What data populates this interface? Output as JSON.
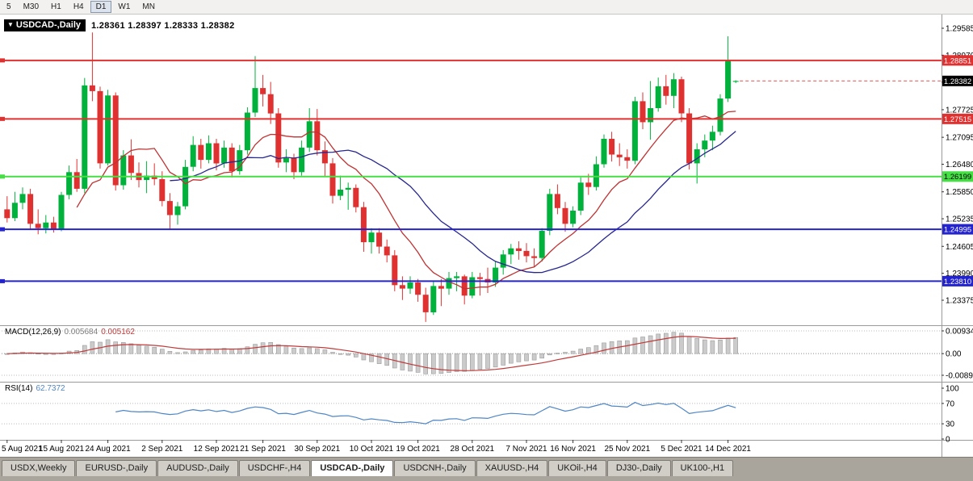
{
  "toolbar": {
    "timeframes": [
      {
        "label": "5",
        "active": false
      },
      {
        "label": "M30",
        "active": false
      },
      {
        "label": "H1",
        "active": false
      },
      {
        "label": "H4",
        "active": false
      },
      {
        "label": "D1",
        "active": true
      },
      {
        "label": "W1",
        "active": false
      },
      {
        "label": "MN",
        "active": false
      }
    ]
  },
  "chart_header": {
    "collapse_icon": "▼",
    "symbol_label": "USDCAD-,Daily",
    "ohlc": "1.28361 1.28397 1.28333 1.28382"
  },
  "indicators": {
    "macd": {
      "label": "MACD(12,26,9)",
      "value_main": "0.005684",
      "value_signal": "0.005162"
    },
    "rsi": {
      "label": "RSI(14)",
      "value": "62.7372"
    }
  },
  "tabs": [
    {
      "label": "USDX,Weekly",
      "active": false
    },
    {
      "label": "EURUSD-,Daily",
      "active": false
    },
    {
      "label": "AUDUSD-,Daily",
      "active": false
    },
    {
      "label": "USDCHF-,H4",
      "active": false
    },
    {
      "label": "USDCAD-,Daily",
      "active": true
    },
    {
      "label": "USDCNH-,Daily",
      "active": false
    },
    {
      "label": "XAUUSD-,H4",
      "active": false
    },
    {
      "label": "UKOil-,H4",
      "active": false
    },
    {
      "label": "DJ30-,Daily",
      "active": false
    },
    {
      "label": "UK100-,H1",
      "active": false
    }
  ],
  "chart_data": {
    "type": "candlestick",
    "title": "USDCAD-,Daily",
    "symbol": "USDCAD",
    "timeframe": "Daily",
    "current_bar": {
      "open": 1.28361,
      "high": 1.28397,
      "low": 1.28333,
      "close": 1.28382
    },
    "colors": {
      "up": "#00B23B",
      "down": "#E03131",
      "ma_fast": "#C03232",
      "ma_slow": "#26268E",
      "macd_hist": "#CBCBCB",
      "macd_signal": "#C03A3A",
      "rsi": "#4F86C6"
    },
    "y_axis_ticks": [
      "1.29585",
      "1.28970",
      "1.28355",
      "1.27725",
      "1.27095",
      "1.26480",
      "1.25850",
      "1.25235",
      "1.24605",
      "1.23990",
      "1.23375"
    ],
    "x_axis_ticks": [
      {
        "index": 0,
        "label": "5 Aug 2021"
      },
      {
        "index": 7,
        "label": "15 Aug 2021"
      },
      {
        "index": 13,
        "label": "24 Aug 2021"
      },
      {
        "index": 20,
        "label": "2 Sep 2021"
      },
      {
        "index": 27,
        "label": "12 Sep 2021"
      },
      {
        "index": 33,
        "label": "21 Sep 2021"
      },
      {
        "index": 40,
        "label": "30 Sep 2021"
      },
      {
        "index": 47,
        "label": "10 Oct 2021"
      },
      {
        "index": 53,
        "label": "19 Oct 2021"
      },
      {
        "index": 60,
        "label": "28 Oct 2021"
      },
      {
        "index": 67,
        "label": "7 Nov 2021"
      },
      {
        "index": 73,
        "label": "16 Nov 2021"
      },
      {
        "index": 80,
        "label": "25 Nov 2021"
      },
      {
        "index": 87,
        "label": "5 Dec 2021"
      },
      {
        "index": 93,
        "label": "14 Dec 2021"
      }
    ],
    "horizontal_lines": [
      {
        "price": 1.28851,
        "label": "1.28851",
        "color": "#E03131",
        "text_color": "#FFFFFF"
      },
      {
        "price": 1.27515,
        "label": "1.27515",
        "color": "#E03131",
        "text_color": "#FFFFFF"
      },
      {
        "price": 1.26199,
        "label": "1.26199",
        "color": "#43DF43",
        "text_color": "#000000"
      },
      {
        "price": 1.24995,
        "label": "1.24995",
        "color": "#2424CE",
        "text_color": "#FFFFFF"
      },
      {
        "price": 1.2381,
        "label": "1.23810",
        "color": "#2424CE",
        "text_color": "#FFFFFF"
      }
    ],
    "current_price": {
      "price": 1.28382,
      "label": "1.28382",
      "color": "#000000",
      "text_color": "#FFFFFF"
    },
    "moving_averages": [
      {
        "period": 10,
        "color": "#C03232"
      },
      {
        "period": 22,
        "color": "#26268E"
      }
    ],
    "macd": {
      "fast": 12,
      "slow": 26,
      "signal": 9,
      "current_main": 0.005684,
      "current_signal": 0.005162,
      "axis": [
        {
          "v": 0.009345,
          "label": "0.009345"
        },
        {
          "v": 0,
          "label": "0.00"
        },
        {
          "v": -0.0089,
          "label": "-0.008900"
        }
      ]
    },
    "rsi": {
      "period": 14,
      "current": 62.7372,
      "levels": [
        70,
        30
      ],
      "axis": [
        {
          "v": 100,
          "label": "100"
        },
        {
          "v": 70,
          "label": "70"
        },
        {
          "v": 30,
          "label": "30"
        },
        {
          "v": 0,
          "label": "0"
        }
      ]
    },
    "dates": [
      "2021-08-05",
      "2021-08-06",
      "2021-08-09",
      "2021-08-10",
      "2021-08-11",
      "2021-08-12",
      "2021-08-13",
      "2021-08-16",
      "2021-08-17",
      "2021-08-18",
      "2021-08-19",
      "2021-08-20",
      "2021-08-23",
      "2021-08-24",
      "2021-08-25",
      "2021-08-26",
      "2021-08-27",
      "2021-08-30",
      "2021-08-31",
      "2021-09-01",
      "2021-09-02",
      "2021-09-03",
      "2021-09-06",
      "2021-09-07",
      "2021-09-08",
      "2021-09-09",
      "2021-09-10",
      "2021-09-13",
      "2021-09-14",
      "2021-09-15",
      "2021-09-16",
      "2021-09-17",
      "2021-09-20",
      "2021-09-21",
      "2021-09-22",
      "2021-09-23",
      "2021-09-24",
      "2021-09-27",
      "2021-09-28",
      "2021-09-29",
      "2021-09-30",
      "2021-10-01",
      "2021-10-04",
      "2021-10-05",
      "2021-10-06",
      "2021-10-07",
      "2021-10-08",
      "2021-10-11",
      "2021-10-12",
      "2021-10-13",
      "2021-10-14",
      "2021-10-15",
      "2021-10-18",
      "2021-10-19",
      "2021-10-20",
      "2021-10-21",
      "2021-10-22",
      "2021-10-25",
      "2021-10-26",
      "2021-10-27",
      "2021-10-28",
      "2021-10-29",
      "2021-11-01",
      "2021-11-02",
      "2021-11-03",
      "2021-11-04",
      "2021-11-05",
      "2021-11-08",
      "2021-11-09",
      "2021-11-10",
      "2021-11-11",
      "2021-11-12",
      "2021-11-15",
      "2021-11-16",
      "2021-11-17",
      "2021-11-18",
      "2021-11-19",
      "2021-11-22",
      "2021-11-23",
      "2021-11-24",
      "2021-11-25",
      "2021-11-26",
      "2021-11-29",
      "2021-11-30",
      "2021-12-01",
      "2021-12-02",
      "2021-12-03",
      "2021-12-06",
      "2021-12-07",
      "2021-12-08",
      "2021-12-09",
      "2021-12-10",
      "2021-12-13",
      "2021-12-14",
      "2021-12-15"
    ],
    "ohlc": [
      [
        1.2545,
        1.2575,
        1.2515,
        1.2525
      ],
      [
        1.2525,
        1.2585,
        1.2518,
        1.256
      ],
      [
        1.256,
        1.2595,
        1.2545,
        1.258
      ],
      [
        1.258,
        1.2592,
        1.25,
        1.2512
      ],
      [
        1.2512,
        1.2545,
        1.2488,
        1.2502
      ],
      [
        1.2502,
        1.2532,
        1.249,
        1.2515
      ],
      [
        1.2515,
        1.2528,
        1.2492,
        1.25
      ],
      [
        1.25,
        1.2585,
        1.2495,
        1.2578
      ],
      [
        1.2578,
        1.2645,
        1.2568,
        1.263
      ],
      [
        1.263,
        1.266,
        1.2585,
        1.2592
      ],
      [
        1.2592,
        1.2845,
        1.2582,
        1.2828
      ],
      [
        1.2828,
        1.2949,
        1.2792,
        1.2815
      ],
      [
        1.2815,
        1.2825,
        1.2638,
        1.265
      ],
      [
        1.265,
        1.2818,
        1.2645,
        1.2805
      ],
      [
        1.2805,
        1.2812,
        1.2588,
        1.26
      ],
      [
        1.26,
        1.268,
        1.259,
        1.2668
      ],
      [
        1.2668,
        1.2705,
        1.2612,
        1.2628
      ],
      [
        1.2628,
        1.2652,
        1.2595,
        1.2612
      ],
      [
        1.2612,
        1.2655,
        1.2582,
        1.2622
      ],
      [
        1.2622,
        1.265,
        1.26,
        1.2614
      ],
      [
        1.2614,
        1.2632,
        1.2552,
        1.2564
      ],
      [
        1.2564,
        1.2582,
        1.2498,
        1.2532
      ],
      [
        1.2532,
        1.2562,
        1.251,
        1.2552
      ],
      [
        1.2552,
        1.2658,
        1.2545,
        1.2642
      ],
      [
        1.2642,
        1.2712,
        1.2632,
        1.2692
      ],
      [
        1.2692,
        1.2706,
        1.2638,
        1.2658
      ],
      [
        1.2658,
        1.2714,
        1.265,
        1.2696
      ],
      [
        1.2696,
        1.2706,
        1.2634,
        1.265
      ],
      [
        1.265,
        1.2702,
        1.264,
        1.2686
      ],
      [
        1.2686,
        1.2696,
        1.2618,
        1.2632
      ],
      [
        1.2632,
        1.2692,
        1.2624,
        1.268
      ],
      [
        1.268,
        1.2778,
        1.267,
        1.2766
      ],
      [
        1.2766,
        1.2895,
        1.2756,
        1.2822
      ],
      [
        1.2822,
        1.2852,
        1.278,
        1.2808
      ],
      [
        1.2808,
        1.2836,
        1.274,
        1.2764
      ],
      [
        1.2764,
        1.2776,
        1.264,
        1.2652
      ],
      [
        1.2652,
        1.2682,
        1.263,
        1.2662
      ],
      [
        1.2662,
        1.2672,
        1.2614,
        1.263
      ],
      [
        1.263,
        1.2702,
        1.2622,
        1.2686
      ],
      [
        1.2686,
        1.2776,
        1.2676,
        1.2746
      ],
      [
        1.2746,
        1.2774,
        1.2668,
        1.268
      ],
      [
        1.268,
        1.27,
        1.262,
        1.265
      ],
      [
        1.265,
        1.2662,
        1.2558,
        1.2576
      ],
      [
        1.2576,
        1.2622,
        1.2566,
        1.259
      ],
      [
        1.259,
        1.2606,
        1.2544,
        1.2594
      ],
      [
        1.2594,
        1.2602,
        1.2538,
        1.255
      ],
      [
        1.255,
        1.2562,
        1.2448,
        1.247
      ],
      [
        1.247,
        1.2502,
        1.2444,
        1.2492
      ],
      [
        1.2492,
        1.2502,
        1.2444,
        1.246
      ],
      [
        1.246,
        1.2476,
        1.2424,
        1.244
      ],
      [
        1.244,
        1.2452,
        1.2358,
        1.2372
      ],
      [
        1.2372,
        1.2392,
        1.2338,
        1.2364
      ],
      [
        1.2364,
        1.2392,
        1.2352,
        1.2378
      ],
      [
        1.2378,
        1.2386,
        1.2334,
        1.235
      ],
      [
        1.235,
        1.2366,
        1.2288,
        1.231
      ],
      [
        1.231,
        1.2382,
        1.2304,
        1.237
      ],
      [
        1.237,
        1.2386,
        1.2324,
        1.2364
      ],
      [
        1.2364,
        1.2402,
        1.235,
        1.2388
      ],
      [
        1.2388,
        1.2402,
        1.2358,
        1.2392
      ],
      [
        1.2392,
        1.2396,
        1.2328,
        1.2348
      ],
      [
        1.2348,
        1.2402,
        1.2342,
        1.239
      ],
      [
        1.239,
        1.24,
        1.2348,
        1.2386
      ],
      [
        1.2386,
        1.2412,
        1.2354,
        1.2378
      ],
      [
        1.2378,
        1.2426,
        1.2368,
        1.2412
      ],
      [
        1.2412,
        1.2452,
        1.2396,
        1.2442
      ],
      [
        1.2442,
        1.2466,
        1.242,
        1.2456
      ],
      [
        1.2456,
        1.2472,
        1.243,
        1.245
      ],
      [
        1.245,
        1.2468,
        1.2424,
        1.2438
      ],
      [
        1.2438,
        1.2456,
        1.2414,
        1.2434
      ],
      [
        1.2434,
        1.2502,
        1.2426,
        1.2496
      ],
      [
        1.2496,
        1.2592,
        1.2486,
        1.258
      ],
      [
        1.258,
        1.2602,
        1.2534,
        1.2548
      ],
      [
        1.2548,
        1.2562,
        1.2494,
        1.2512
      ],
      [
        1.2512,
        1.2552,
        1.2504,
        1.2542
      ],
      [
        1.2542,
        1.2618,
        1.2532,
        1.2606
      ],
      [
        1.2606,
        1.2626,
        1.2578,
        1.2596
      ],
      [
        1.2596,
        1.2666,
        1.2588,
        1.2648
      ],
      [
        1.2648,
        1.2716,
        1.264,
        1.2706
      ],
      [
        1.2706,
        1.2722,
        1.2654,
        1.267
      ],
      [
        1.267,
        1.2696,
        1.2644,
        1.2664
      ],
      [
        1.2664,
        1.2682,
        1.2638,
        1.2656
      ],
      [
        1.2656,
        1.2802,
        1.2648,
        1.2792
      ],
      [
        1.2792,
        1.2812,
        1.2728,
        1.2744
      ],
      [
        1.2744,
        1.2838,
        1.2704,
        1.2776
      ],
      [
        1.2776,
        1.2846,
        1.2768,
        1.2826
      ],
      [
        1.2826,
        1.2852,
        1.2784,
        1.2804
      ],
      [
        1.2804,
        1.2856,
        1.2776,
        1.2842
      ],
      [
        1.2842,
        1.2848,
        1.2744,
        1.2764
      ],
      [
        1.2764,
        1.2776,
        1.2636,
        1.265
      ],
      [
        1.265,
        1.2696,
        1.2604,
        1.2682
      ],
      [
        1.2682,
        1.2716,
        1.2664,
        1.2702
      ],
      [
        1.2702,
        1.2736,
        1.268,
        1.2722
      ],
      [
        1.2722,
        1.2808,
        1.2714,
        1.2798
      ],
      [
        1.2798,
        1.294,
        1.279,
        1.2886
      ],
      [
        1.28361,
        1.28397,
        1.28333,
        1.28382
      ]
    ]
  }
}
